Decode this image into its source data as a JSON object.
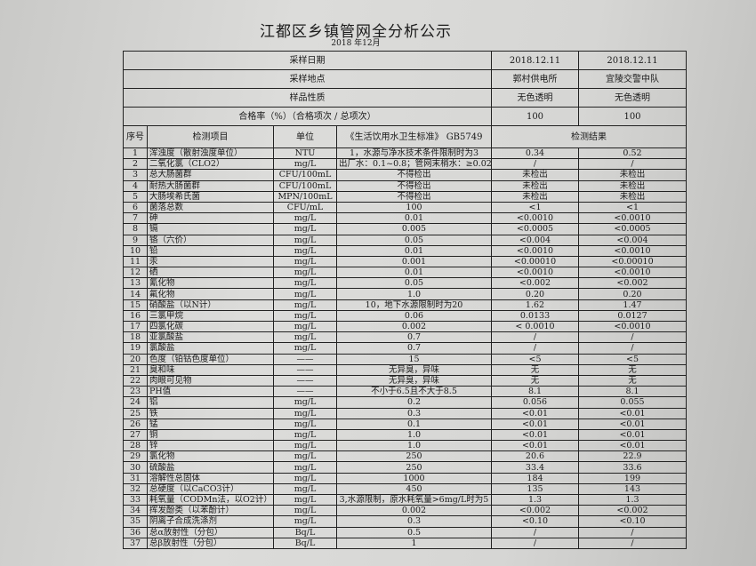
{
  "title": "江都区乡镇管网全分析公示",
  "subtitle": "2018 年12月",
  "meta": [
    {
      "label": "采样日期",
      "v1": "2018.12.11",
      "v2": "2018.12.11"
    },
    {
      "label": "采样地点",
      "v1": "郭村供电所",
      "v2": "宜陵交警中队"
    },
    {
      "label": "样品性质",
      "v1": "无色透明",
      "v2": "无色透明"
    },
    {
      "label": "合格率（%）（合格项次 / 总项次）",
      "v1": "100",
      "v2": "100"
    }
  ],
  "headers": {
    "seq": "序号",
    "item": "检测项目",
    "unit": "单位",
    "standard": "《生活饮用水卫生标准》 GB5749",
    "result": "检测结果"
  },
  "rows": [
    [
      "1",
      "浑浊度（散射浊度单位）",
      "NTU",
      "1，水源与净水技术条件限制时为3",
      "0.34",
      "0.52"
    ],
    [
      "2",
      "二氧化氯（CLO2）",
      "mg/L",
      "出厂水：0.1~0.8；管网末梢水：≥0.02",
      "/",
      "/"
    ],
    [
      "3",
      "总大肠菌群",
      "CFU/100mL",
      "不得检出",
      "未检出",
      "未检出"
    ],
    [
      "4",
      "耐热大肠菌群",
      "CFU/100mL",
      "不得检出",
      "未检出",
      "未检出"
    ],
    [
      "5",
      "大肠埃希氏菌",
      "MPN/100mL",
      "不得检出",
      "未检出",
      "未检出"
    ],
    [
      "6",
      "菌落总数",
      "CFU/mL",
      "100",
      "<1",
      "<1"
    ],
    [
      "7",
      "砷",
      "mg/L",
      "0.01",
      "<0.0010",
      "<0.0010"
    ],
    [
      "8",
      "镉",
      "mg/L",
      "0.005",
      "<0.0005",
      "<0.0005"
    ],
    [
      "9",
      "铬（六价）",
      "mg/L",
      "0.05",
      "<0.004",
      "<0.004"
    ],
    [
      "10",
      "铅",
      "mg/L",
      "0.01",
      "<0.0010",
      "<0.0010"
    ],
    [
      "11",
      "汞",
      "mg/L",
      "0.001",
      "<0.00010",
      "<0.00010"
    ],
    [
      "12",
      "硒",
      "mg/L",
      "0.01",
      "<0.0010",
      "<0.0010"
    ],
    [
      "13",
      "氰化物",
      "mg/L",
      "0.05",
      "<0.002",
      "<0.002"
    ],
    [
      "14",
      "氟化物",
      "mg/L",
      "1.0",
      "0.20",
      "0.20"
    ],
    [
      "15",
      "硝酸盐（以N计）",
      "mg/L",
      "10，地下水源限制时为20",
      "1.62",
      "1.47"
    ],
    [
      "16",
      "三氯甲烷",
      "mg/L",
      "0.06",
      "0.0133",
      "0.0127"
    ],
    [
      "17",
      "四氯化碳",
      "mg/L",
      "0.002",
      "< 0.0010",
      "<0.0010"
    ],
    [
      "18",
      "亚氯酸盐",
      "mg/L",
      "0.7",
      "/",
      "/"
    ],
    [
      "19",
      "氯酸盐",
      "mg/L",
      "0.7",
      "/",
      "/"
    ],
    [
      "20",
      "色度（铂钴色度单位）",
      "——",
      "15",
      "<5",
      "<5"
    ],
    [
      "21",
      "臭和味",
      "——",
      "无异臭，异味",
      "无",
      "无"
    ],
    [
      "22",
      "肉眼可见物",
      "——",
      "无异臭，异味",
      "无",
      "无"
    ],
    [
      "23",
      "PH值",
      "——",
      "不小于6.5且不大于8.5",
      "8.1",
      "8.1"
    ],
    [
      "24",
      "铝",
      "mg/L",
      "0.2",
      "0.056",
      "0.055"
    ],
    [
      "25",
      "铁",
      "mg/L",
      "0.3",
      "<0.01",
      "<0.01"
    ],
    [
      "26",
      "锰",
      "mg/L",
      "0.1",
      "<0.01",
      "<0.01"
    ],
    [
      "27",
      "铜",
      "mg/L",
      "1.0",
      "<0.01",
      "<0.01"
    ],
    [
      "28",
      "锌",
      "mg/L",
      "1.0",
      "<0.01",
      "<0.01"
    ],
    [
      "29",
      "氯化物",
      "mg/L",
      "250",
      "20.6",
      "22.9"
    ],
    [
      "30",
      "硫酸盐",
      "mg/L",
      "250",
      "33.4",
      "33.6"
    ],
    [
      "31",
      "溶解性总固体",
      "mg/L",
      "1000",
      "184",
      "199"
    ],
    [
      "32",
      "总硬度（以CaCO3计）",
      "mg/L",
      "450",
      "135",
      "143"
    ],
    [
      "33",
      "耗氧量（CODMn法，以O2计）",
      "mg/L",
      "3,水源限制，原水耗氧量>6mg/L时为5",
      "1.3",
      "1.3"
    ],
    [
      "34",
      "挥发酚类（以苯酚计）",
      "mg/L",
      "0.002",
      "<0.002",
      "<0.002"
    ],
    [
      "35",
      "阴离子合成洗涤剂",
      "mg/L",
      "0.3",
      "<0.10",
      "<0.10"
    ],
    [
      "36",
      "总α放射性（分包）",
      "Bq/L",
      "0.5",
      "/",
      "/"
    ],
    [
      "37",
      "总β放射性（分包）",
      "Bq/L",
      "1",
      "/",
      "/"
    ]
  ]
}
